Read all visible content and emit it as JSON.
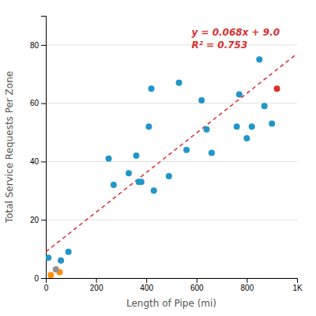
{
  "chart_data": {
    "type": "scatter",
    "xlabel": "Length of Pipe (mi)",
    "ylabel": "Total Service Requests Per Zone",
    "xlim": [
      0,
      1000
    ],
    "ylim": [
      0,
      90
    ],
    "xticks": [
      0,
      200,
      400,
      600,
      800,
      {
        "value": 1000,
        "label": "1K"
      }
    ],
    "yticks": [
      0,
      20,
      40,
      60,
      80
    ],
    "grid": "y",
    "annotations": [
      "y = 0.068x + 9.0",
      "R² = 0.753"
    ],
    "series": [
      {
        "type": "line",
        "color": "#D93030",
        "line_style": "dashed",
        "x": [
          0,
          1000
        ],
        "values": [
          9.0,
          77.0
        ]
      },
      {
        "type": "scatter",
        "color": "#2196C8",
        "x": [
          10,
          60,
          90,
          250,
          270,
          330,
          360,
          370,
          380,
          410,
          420,
          430,
          490,
          530,
          560,
          620,
          640,
          660,
          760,
          770,
          800,
          820,
          850,
          870,
          900
        ],
        "values": [
          7,
          6,
          9,
          41,
          32,
          36,
          42,
          33,
          33,
          52,
          65,
          30,
          35,
          67,
          44,
          61,
          51,
          43,
          52,
          63,
          48,
          52,
          75,
          59,
          53
        ]
      },
      {
        "type": "scatter",
        "color": "#FF8C00",
        "x": [
          20,
          55
        ],
        "values": [
          1,
          2
        ]
      },
      {
        "type": "scatter",
        "color": "#909090",
        "x": [
          40
        ],
        "values": [
          3
        ]
      },
      {
        "type": "scatter",
        "color": "#D93030",
        "x": [
          920
        ],
        "values": [
          65
        ]
      }
    ]
  }
}
